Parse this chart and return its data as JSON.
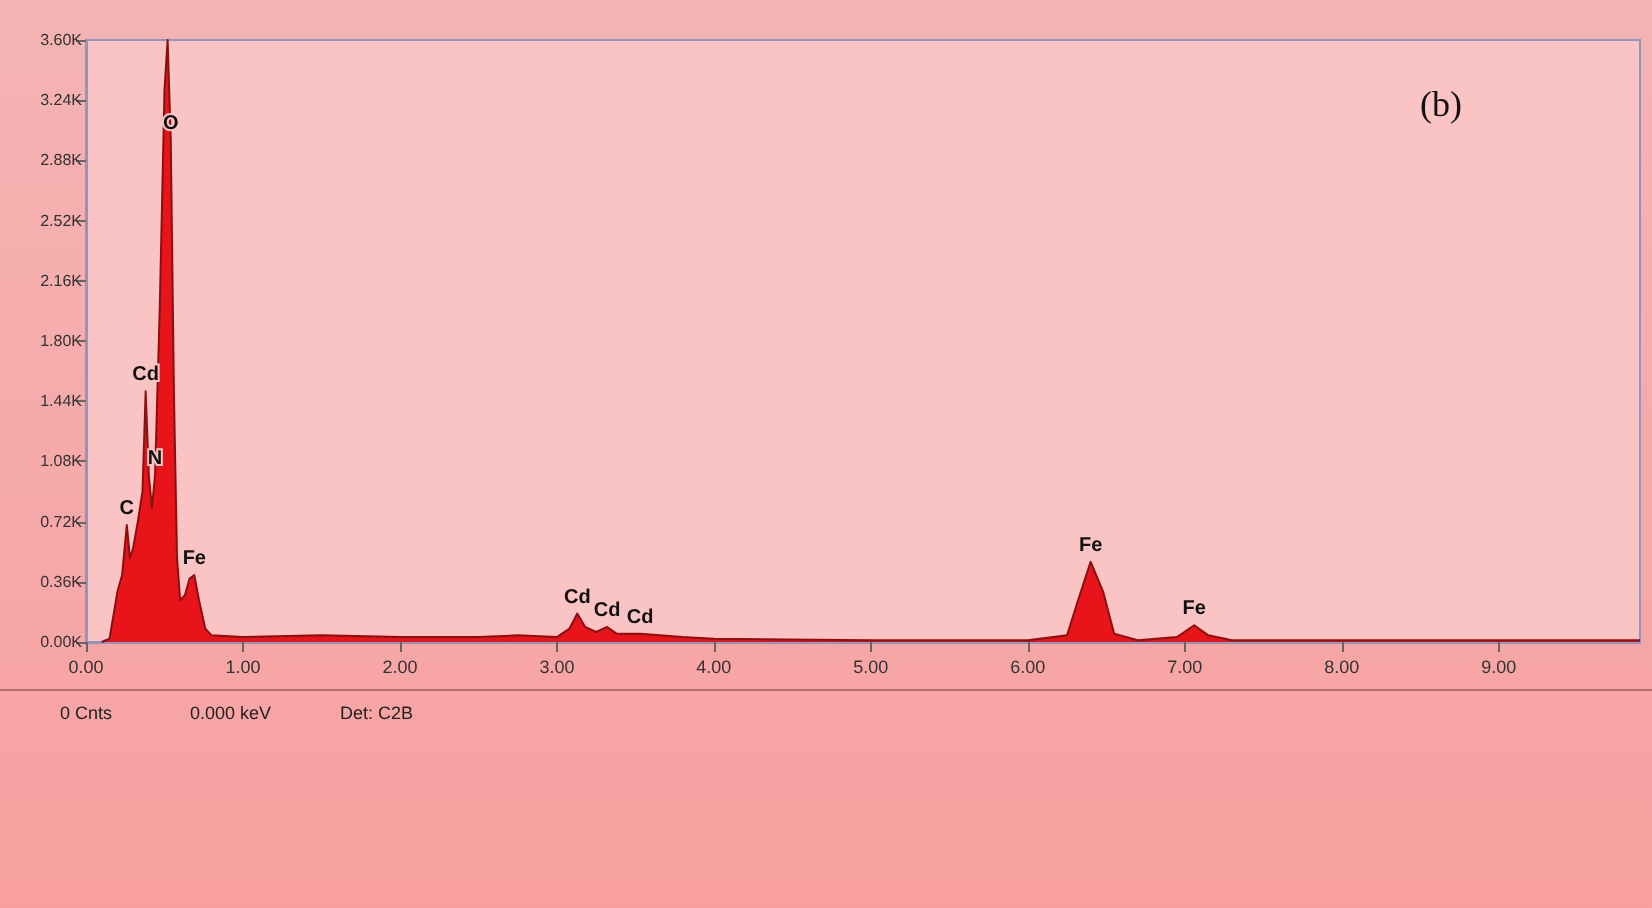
{
  "chart_data": {
    "type": "area",
    "title": "(b)",
    "x": [
      0.1,
      0.15,
      0.2,
      0.23,
      0.26,
      0.28,
      0.3,
      0.33,
      0.36,
      0.38,
      0.4,
      0.42,
      0.44,
      0.47,
      0.5,
      0.52,
      0.54,
      0.56,
      0.58,
      0.6,
      0.63,
      0.66,
      0.69,
      0.72,
      0.76,
      0.8,
      1.0,
      1.5,
      2.0,
      2.5,
      2.75,
      3.0,
      3.08,
      3.13,
      3.18,
      3.25,
      3.32,
      3.38,
      3.53,
      3.8,
      4.0,
      5.0,
      6.0,
      6.25,
      6.32,
      6.4,
      6.48,
      6.55,
      6.7,
      6.95,
      7.06,
      7.15,
      7.3,
      8.0,
      9.0,
      9.9
    ],
    "series": [
      {
        "color": "#e8141a",
        "values": [
          0,
          20,
          300,
          400,
          700,
          500,
          560,
          720,
          900,
          1500,
          1000,
          800,
          1000,
          2000,
          3300,
          3600,
          3000,
          1500,
          500,
          250,
          280,
          380,
          400,
          250,
          80,
          40,
          30,
          40,
          30,
          30,
          40,
          30,
          80,
          170,
          90,
          60,
          90,
          50,
          50,
          30,
          20,
          10,
          10,
          40,
          250,
          480,
          300,
          50,
          10,
          30,
          100,
          40,
          10,
          10,
          10,
          10
        ]
      }
    ],
    "xlim": [
      0,
      9.9
    ],
    "xticks": [
      {
        "value": 0,
        "label": "0.00"
      },
      {
        "value": 1,
        "label": "1.00"
      },
      {
        "value": 2,
        "label": "2.00"
      },
      {
        "value": 3,
        "label": "3.00"
      },
      {
        "value": 4,
        "label": "4.00"
      },
      {
        "value": 5,
        "label": "5.00"
      },
      {
        "value": 6,
        "label": "6.00"
      },
      {
        "value": 7,
        "label": "7.00"
      },
      {
        "value": 8,
        "label": "8.00"
      },
      {
        "value": 9,
        "label": "9.00"
      }
    ],
    "ylim": [
      0,
      3600
    ],
    "yticks": [
      {
        "value": 0,
        "label": "0.00K"
      },
      {
        "value": 360,
        "label": "0.36K"
      },
      {
        "value": 720,
        "label": "0.72K"
      },
      {
        "value": 1080,
        "label": "1.08K"
      },
      {
        "value": 1440,
        "label": "1.44K"
      },
      {
        "value": 1800,
        "label": "1.80K"
      },
      {
        "value": 2160,
        "label": "2.16K"
      },
      {
        "value": 2520,
        "label": "2.52K"
      },
      {
        "value": 2880,
        "label": "2.88K"
      },
      {
        "value": 3240,
        "label": "3.24K"
      },
      {
        "value": 3600,
        "label": "3.60K"
      }
    ],
    "grid": false,
    "annotations": [
      {
        "text": "O",
        "x": 0.54,
        "y": 3000
      },
      {
        "text": "Cd",
        "x": 0.38,
        "y": 1500
      },
      {
        "text": "N",
        "x": 0.44,
        "y": 1000
      },
      {
        "text": "C",
        "x": 0.26,
        "y": 700
      },
      {
        "text": "Fe",
        "x": 0.69,
        "y": 400
      },
      {
        "text": "Cd",
        "x": 3.13,
        "y": 170
      },
      {
        "text": "Cd",
        "x": 3.32,
        "y": 90
      },
      {
        "text": "Cd",
        "x": 3.53,
        "y": 50
      },
      {
        "text": "Fe",
        "x": 6.4,
        "y": 480
      },
      {
        "text": "Fe",
        "x": 7.06,
        "y": 100
      },
      "0 Cnts",
      "0.000 keV",
      "Det: C2B"
    ]
  }
}
